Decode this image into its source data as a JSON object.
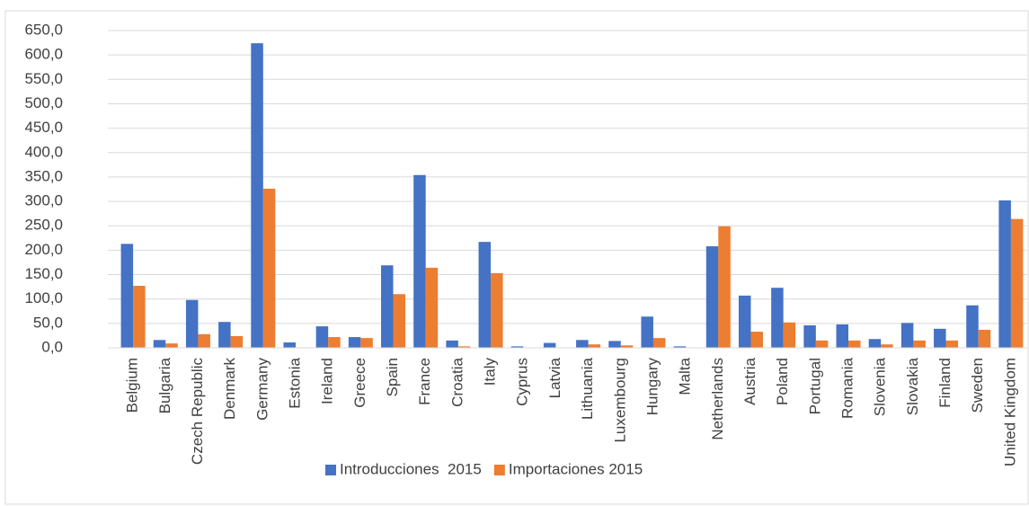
{
  "chart_data": {
    "type": "bar",
    "categories": [
      "Belgium",
      "Bulgaria",
      "Czech Republic",
      "Denmark",
      "Germany",
      "Estonia",
      "Ireland",
      "Greece",
      "Spain",
      "France",
      "Croatia",
      "Italy",
      "Cyprus",
      "Latvia",
      "Lithuania",
      "Luxembourg",
      "Hungary",
      "Malta",
      "Netherlands",
      "Austria",
      "Poland",
      "Portugal",
      "Romania",
      "Slovenia",
      "Slovakia",
      "Finland",
      "Sweden",
      "United Kingdom"
    ],
    "series": [
      {
        "name": "Introducciones  2015",
        "color": "#4472c4",
        "values": [
          213,
          16,
          98,
          53,
          624,
          11,
          44,
          22,
          169,
          354,
          15,
          217,
          3,
          10,
          16,
          14,
          64,
          3,
          208,
          107,
          123,
          46,
          48,
          18,
          51,
          39,
          87,
          302
        ]
      },
      {
        "name": "Importaciones 2015",
        "color": "#ed7d31",
        "values": [
          127,
          9,
          28,
          24,
          326,
          1,
          22,
          20,
          110,
          164,
          3,
          153,
          0,
          0,
          7,
          5,
          20,
          0,
          249,
          33,
          52,
          15,
          15,
          7,
          15,
          15,
          37,
          264
        ]
      }
    ],
    "ylim": [
      0,
      650
    ],
    "yticks": [
      {
        "value": 0,
        "label": "0,0"
      },
      {
        "value": 50,
        "label": "50,0"
      },
      {
        "value": 100,
        "label": "100,0"
      },
      {
        "value": 150,
        "label": "150,0"
      },
      {
        "value": 200,
        "label": "200,0"
      },
      {
        "value": 250,
        "label": "250,0"
      },
      {
        "value": 300,
        "label": "300,0"
      },
      {
        "value": 350,
        "label": "350,0"
      },
      {
        "value": 400,
        "label": "400,0"
      },
      {
        "value": 450,
        "label": "450,0"
      },
      {
        "value": 500,
        "label": "500,0"
      },
      {
        "value": 550,
        "label": "550,0"
      },
      {
        "value": 600,
        "label": "600,0"
      },
      {
        "value": 650,
        "label": "650,0"
      }
    ],
    "grid": true,
    "legend": "bottom"
  }
}
